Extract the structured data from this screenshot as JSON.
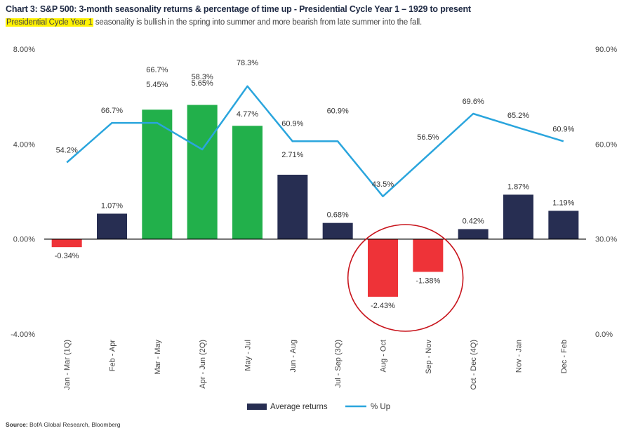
{
  "header": {
    "title": "Chart 3: S&P 500: 3-month seasonality returns & percentage of time up - Presidential Cycle Year 1 – 1929 to present",
    "subtitle_highlight": "Presidential Cycle Year 1",
    "subtitle_rest": " seasonality is bullish in the spring into summer and more bearish from late summer into the fall."
  },
  "footer": {
    "source_label": "Source:",
    "source_text": " BofA Global Research, Bloomberg"
  },
  "colors": {
    "navy": "#272e52",
    "green": "#22b04b",
    "red": "#ee3338",
    "line": "#2aa5dd",
    "circle": "#c8141c",
    "axis_text": "#444444",
    "label_text": "#333333"
  },
  "chart_data": {
    "type": "bar",
    "categories": [
      "Jan - Mar (1Q)",
      "Feb - Apr",
      "Mar - May",
      "Apr - Jun (2Q)",
      "May - Jul",
      "Jun - Aug",
      "Jul - Sep (3Q)",
      "Aug - Oct",
      "Sep - Nov",
      "Oct - Dec (4Q)",
      "Nov - Jan",
      "Dec - Feb"
    ],
    "series": [
      {
        "name": "Average returns",
        "type": "bar",
        "axis": "left",
        "values": [
          -0.34,
          1.07,
          5.45,
          5.65,
          4.77,
          2.71,
          0.68,
          -2.43,
          -1.38,
          0.42,
          1.87,
          1.19
        ],
        "labels": [
          "-0.34%",
          "1.07%",
          "5.45%",
          "5.65%",
          "4.77%",
          "2.71%",
          "0.68%",
          "-2.43%",
          "-1.38%",
          "0.42%",
          "1.87%",
          "1.19%"
        ],
        "bar_colors": [
          "red",
          "navy",
          "green",
          "green",
          "green",
          "navy",
          "navy",
          "red",
          "red",
          "navy",
          "navy",
          "navy"
        ]
      },
      {
        "name": "% Up",
        "type": "line",
        "axis": "right",
        "values": [
          54.2,
          66.7,
          66.7,
          58.3,
          78.3,
          60.9,
          60.9,
          43.5,
          56.5,
          69.6,
          65.2,
          60.9
        ],
        "labels": [
          "54.2%",
          "66.7%",
          "66.7%",
          "58.3%",
          "78.3%",
          "60.9%",
          "60.9%",
          "43.5%",
          "56.5%",
          "69.6%",
          "65.2%",
          "60.9%"
        ]
      }
    ],
    "left_axis": {
      "min": -4,
      "max": 8,
      "ticks": [
        8,
        4,
        0,
        -4
      ],
      "tick_labels": [
        "8.00%",
        "4.00%",
        "0.00%",
        "-4.00%"
      ]
    },
    "right_axis": {
      "min": 0,
      "max": 90,
      "ticks": [
        90,
        60,
        30,
        0
      ],
      "tick_labels": [
        "90.0%",
        "60.0%",
        "30.0%",
        "0.0%"
      ]
    },
    "grid": false,
    "legend": {
      "placement": "bottom-center",
      "items": [
        "Average returns",
        "% Up"
      ]
    },
    "annotation": {
      "type": "circle",
      "around": [
        "Aug - Oct",
        "Sep - Nov"
      ]
    }
  }
}
